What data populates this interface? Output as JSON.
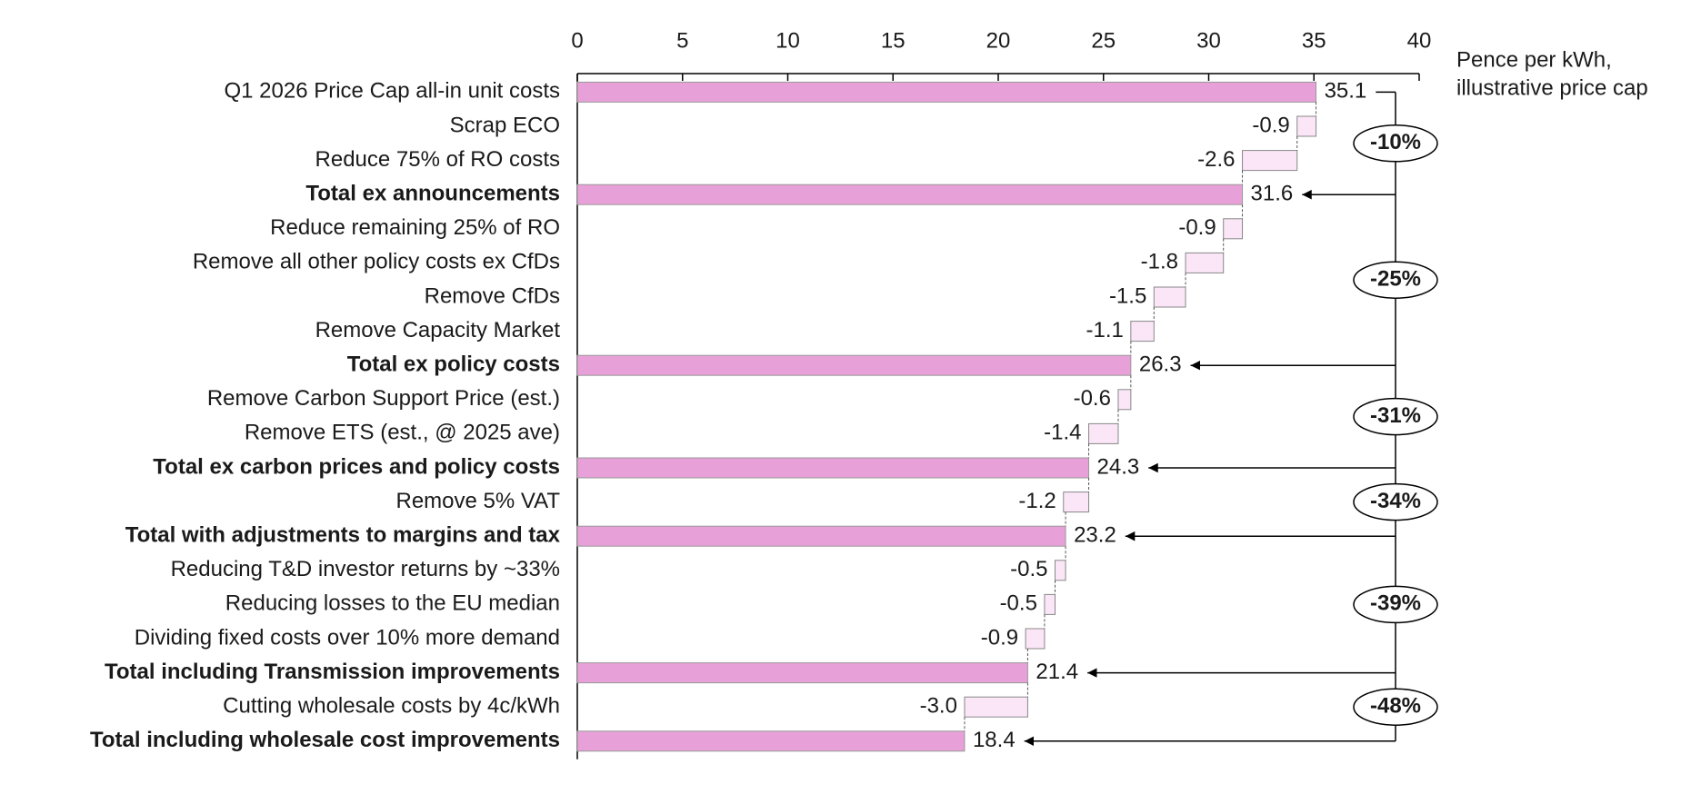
{
  "chart_data": {
    "type": "waterfall",
    "x_label": [
      "Pence per kWh,",
      "illustrative price cap"
    ],
    "categories": [
      "Q1 2026 Price Cap all-in unit costs",
      "Scrap ECO",
      "Reduce 75% of RO costs",
      "Total ex announcements",
      "Reduce remaining 25% of RO",
      "Remove all other policy costs ex CfDs",
      "Remove CfDs",
      "Remove Capacity Market",
      "Total ex policy costs",
      "Remove Carbon Support Price (est.)",
      "Remove ETS (est., @ 2025 ave)",
      "Total ex carbon prices and policy costs",
      "Remove 5% VAT",
      "Total with adjustments to margins and tax",
      "Reducing T&D investor returns by ~33%",
      "Reducing losses to the EU median",
      "Dividing fixed costs over 10% more demand",
      "Total including Transmission improvements",
      "Cutting wholesale costs by 4c/kWh",
      "Total including wholesale cost improvements"
    ],
    "values": [
      35.1,
      -0.9,
      -2.6,
      31.6,
      -0.9,
      -1.8,
      -1.5,
      -1.1,
      26.3,
      -0.6,
      -1.4,
      24.3,
      -1.2,
      23.2,
      -0.5,
      -0.5,
      -0.9,
      21.4,
      -3.0,
      18.4
    ],
    "value_labels": [
      "35.1",
      "-0.9",
      "-2.6",
      "31.6",
      "-0.9",
      "-1.8",
      "-1.5",
      "-1.1",
      "26.3",
      "-0.6",
      "-1.4",
      "24.3",
      "-1.2",
      "23.2",
      "-0.5",
      "-0.5",
      "-0.9",
      "21.4",
      "-3.0",
      "18.4"
    ],
    "total_color": "#e8a0d8",
    "change_color": "#fbe6f7",
    "annotations": [
      "-10%",
      "-25%",
      "-31%",
      "-34%",
      "-39%",
      "-48%"
    ],
    "xlim": [
      0,
      40
    ],
    "xticks": [
      0,
      5,
      10,
      15,
      20,
      25,
      30,
      35,
      40
    ]
  }
}
